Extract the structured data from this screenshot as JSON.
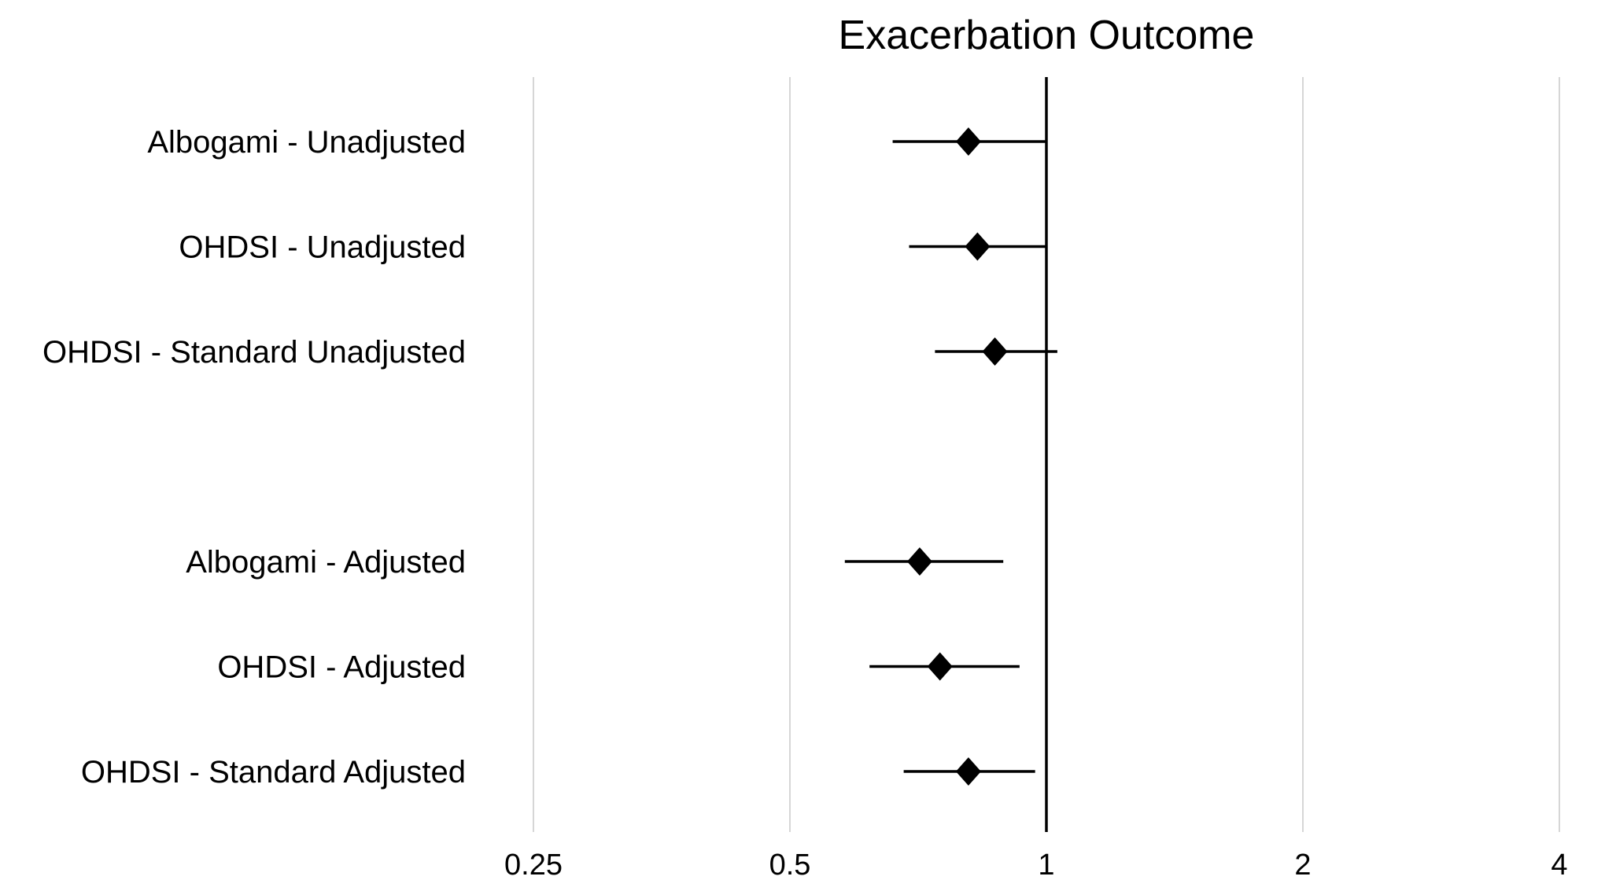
{
  "chart_data": {
    "type": "scatter",
    "subtype": "forest-plot",
    "title": "Exacerbation Outcome",
    "xlabel": "",
    "ylabel": "",
    "x_scale": "log2",
    "xlim": [
      0.25,
      4
    ],
    "x_ticks": [
      {
        "value": 0.25,
        "label": "0.25"
      },
      {
        "value": 0.5,
        "label": "0.5"
      },
      {
        "value": 1,
        "label": "1"
      },
      {
        "value": 2,
        "label": "2"
      },
      {
        "value": 4,
        "label": "4"
      }
    ],
    "reference_line": 1,
    "grid": true,
    "legend": "none",
    "marker": "diamond",
    "marker_color": "#000000",
    "grid_color": "#c8c8c8",
    "rows": [
      {
        "label": "Albogami - Unadjusted",
        "estimate": 0.81,
        "lower": 0.66,
        "upper": 1.0,
        "gap_before": false
      },
      {
        "label": "OHDSI - Unadjusted",
        "estimate": 0.83,
        "lower": 0.69,
        "upper": 1.0,
        "gap_before": false
      },
      {
        "label": "OHDSI - Standard Unadjusted",
        "estimate": 0.87,
        "lower": 0.74,
        "upper": 1.03,
        "gap_before": false
      },
      {
        "label": "Albogami - Adjusted",
        "estimate": 0.71,
        "lower": 0.58,
        "upper": 0.89,
        "gap_before": true
      },
      {
        "label": "OHDSI - Adjusted",
        "estimate": 0.75,
        "lower": 0.62,
        "upper": 0.93,
        "gap_before": false
      },
      {
        "label": "OHDSI - Standard Adjusted",
        "estimate": 0.81,
        "lower": 0.68,
        "upper": 0.97,
        "gap_before": false
      }
    ]
  }
}
